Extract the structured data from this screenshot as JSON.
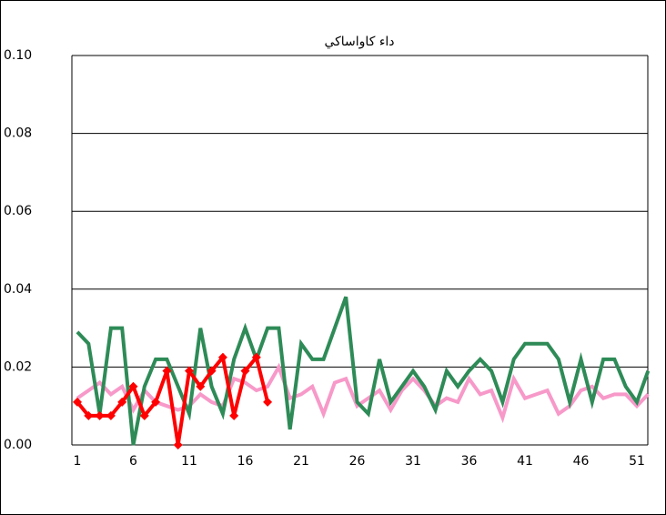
{
  "chart_data": {
    "type": "line",
    "title": "داء كاواساكي",
    "categories": [
      "1",
      null,
      null,
      null,
      null,
      "6",
      null,
      null,
      null,
      null,
      "11",
      null,
      null,
      null,
      null,
      "16",
      null,
      null,
      null,
      null,
      "21",
      null,
      null,
      null,
      null,
      "26",
      null,
      null,
      null,
      null,
      "31",
      null,
      null,
      null,
      null,
      "36",
      null,
      null,
      null,
      null,
      "41",
      null,
      null,
      null,
      null,
      "46",
      null,
      null,
      null,
      null,
      "51",
      null
    ],
    "ylim": [
      0,
      0.1
    ],
    "yticks": [
      {
        "value": 0,
        "label": "0.00"
      },
      {
        "value": 0.02,
        "label": "0.02"
      },
      {
        "value": 0.04,
        "label": "0.04"
      },
      {
        "value": 0.06,
        "label": "0.06"
      },
      {
        "value": 0.08,
        "label": "0.08"
      },
      {
        "value": 0.1,
        "label": "0.10"
      }
    ],
    "grid": true,
    "series": [
      {
        "color": "#f799c9",
        "values": [
          0.012,
          0.014,
          0.016,
          0.013,
          0.015,
          0.009,
          0.014,
          0.011,
          0.01,
          0.009,
          0.01,
          0.013,
          0.011,
          0.01,
          0.017,
          0.016,
          0.014,
          0.015,
          0.02,
          0.012,
          0.013,
          0.015,
          0.008,
          0.016,
          0.017,
          0.01,
          0.012,
          0.014,
          0.009,
          0.014,
          0.017,
          0.014,
          0.01,
          0.012,
          0.011,
          0.017,
          0.013,
          0.014,
          0.007,
          0.017,
          0.012,
          0.013,
          0.014,
          0.008,
          0.01,
          0.014,
          0.015,
          0.012,
          0.013,
          0.013,
          0.01,
          0.013
        ]
      },
      {
        "color": "#2e8b57",
        "values": [
          0.029,
          0.026,
          0.008,
          0.03,
          0.03,
          0.0,
          0.015,
          0.022,
          0.022,
          0.015,
          0.008,
          0.03,
          0.015,
          0.008,
          0.022,
          0.03,
          0.022,
          0.03,
          0.03,
          0.004,
          0.026,
          0.022,
          0.022,
          0.03,
          0.038,
          0.011,
          0.008,
          0.022,
          0.011,
          0.015,
          0.019,
          0.015,
          0.009,
          0.019,
          0.015,
          0.019,
          0.022,
          0.019,
          0.011,
          0.022,
          0.026,
          0.026,
          0.026,
          0.022,
          0.011,
          0.022,
          0.011,
          0.022,
          0.022,
          0.015,
          0.011,
          0.019
        ]
      },
      {
        "color": "#ff0000",
        "marker": "diamond",
        "values": [
          0.011,
          0.0075,
          0.0075,
          0.0075,
          0.011,
          0.015,
          0.0075,
          0.011,
          0.019,
          0.0,
          0.019,
          0.015,
          0.019,
          0.0225,
          0.0075,
          0.019,
          0.0225,
          0.011,
          null,
          null,
          null,
          null,
          null,
          null,
          null,
          null,
          null,
          null,
          null,
          null,
          null,
          null,
          null,
          null,
          null,
          null,
          null,
          null,
          null,
          null,
          null,
          null,
          null,
          null,
          null,
          null,
          null,
          null,
          null,
          null,
          null,
          null
        ]
      }
    ]
  }
}
